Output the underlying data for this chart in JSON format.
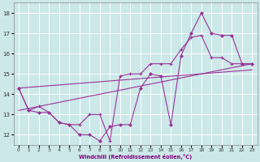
{
  "xlabel": "Windchill (Refroidissement éolien,°C)",
  "bg_color": "#cce8e8",
  "line_color": "#993399",
  "grid_color": "#ffffff",
  "xlim": [
    -0.5,
    23.5
  ],
  "ylim": [
    11.5,
    18.5
  ],
  "yticks": [
    12,
    13,
    14,
    15,
    16,
    17,
    18
  ],
  "xticks": [
    0,
    1,
    2,
    3,
    4,
    5,
    6,
    7,
    8,
    9,
    10,
    11,
    12,
    13,
    14,
    15,
    16,
    17,
    18,
    19,
    20,
    21,
    22,
    23
  ],
  "line1_x": [
    0,
    1,
    2,
    3,
    4,
    5,
    6,
    7,
    8,
    9,
    10,
    11,
    12,
    13,
    14,
    15,
    16,
    17,
    18,
    19,
    20,
    21,
    22,
    23
  ],
  "line1_y": [
    14.3,
    13.2,
    13.1,
    13.1,
    12.6,
    12.5,
    12.0,
    12.0,
    11.7,
    12.4,
    12.5,
    12.5,
    14.3,
    15.0,
    14.9,
    12.5,
    15.9,
    17.0,
    18.0,
    17.0,
    16.9,
    16.9,
    15.5,
    15.5
  ],
  "line2_x": [
    0,
    1,
    2,
    3,
    4,
    5,
    6,
    7,
    8,
    9,
    10,
    11,
    12,
    13,
    14,
    15,
    16,
    17,
    18,
    19,
    20,
    21,
    22,
    23
  ],
  "line2_y": [
    14.3,
    13.2,
    13.4,
    13.1,
    12.6,
    12.5,
    12.5,
    13.0,
    13.0,
    11.7,
    14.9,
    15.0,
    15.0,
    15.5,
    15.5,
    15.5,
    16.2,
    16.8,
    16.9,
    15.8,
    15.8,
    15.5,
    15.5,
    15.5
  ],
  "line3_x": [
    0,
    23
  ],
  "line3_y": [
    13.2,
    15.5
  ],
  "line4_x": [
    0,
    23
  ],
  "line4_y": [
    14.3,
    15.2
  ]
}
